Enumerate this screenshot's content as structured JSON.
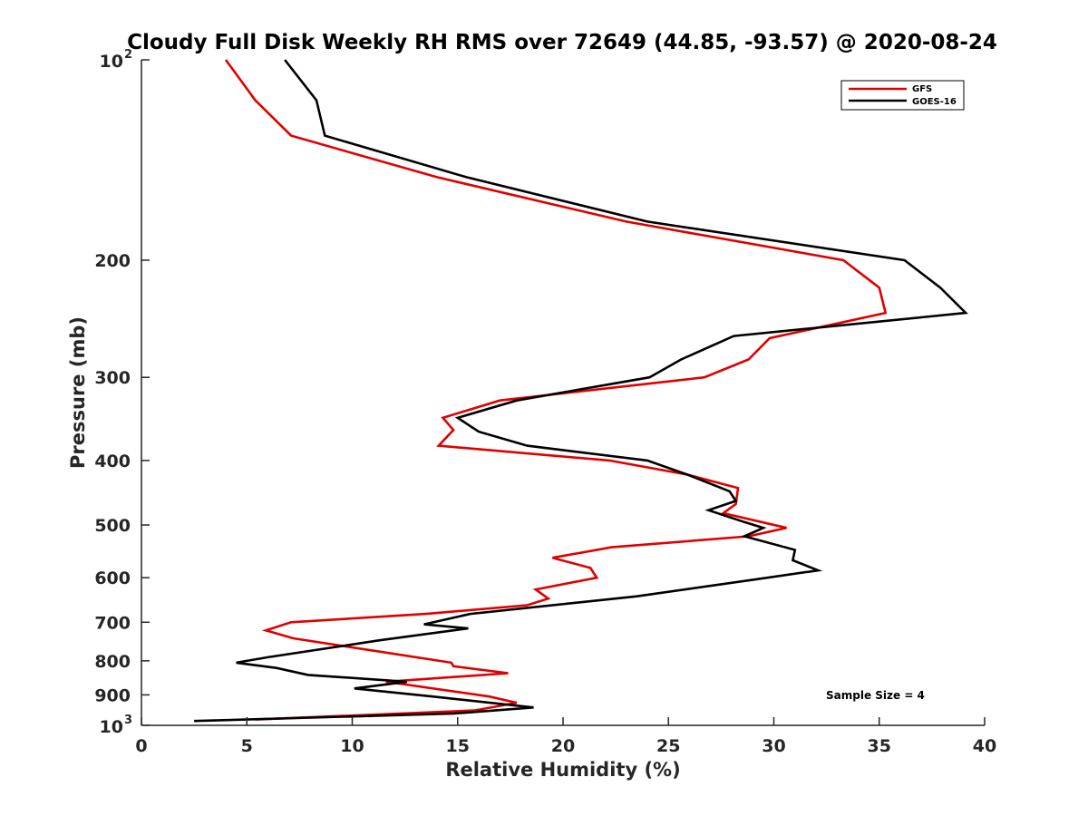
{
  "chart_data": {
    "type": "line",
    "title": "Cloudy Full Disk Weekly RH RMS over 72649 (44.85, -93.57) @ 2020-08-24",
    "xlabel": "Relative Humidity (%)",
    "ylabel": "Pressure (mb)",
    "xlim": [
      0,
      40
    ],
    "ylim": [
      100,
      1000
    ],
    "yscale": "log",
    "y_reversed": true,
    "x_ticks": [
      "0",
      "5",
      "10",
      "15",
      "20",
      "25",
      "30",
      "35",
      "40"
    ],
    "y_ticks": [
      {
        "value": 100,
        "base": "10",
        "exp": "2"
      },
      {
        "value": 200,
        "label": "200"
      },
      {
        "value": 300,
        "label": "300"
      },
      {
        "value": 400,
        "label": "400"
      },
      {
        "value": 500,
        "label": "500"
      },
      {
        "value": 600,
        "label": "600"
      },
      {
        "value": 700,
        "label": "700"
      },
      {
        "value": 800,
        "label": "800"
      },
      {
        "value": 900,
        "label": "900"
      },
      {
        "value": 1000,
        "base": "10",
        "exp": "3"
      }
    ],
    "legend_position": "top-right",
    "annotation": "Sample Size = 4",
    "series": [
      {
        "name": "GFS",
        "color": "#e00000",
        "points": [
          [
            4.0,
            100
          ],
          [
            5.4,
            115
          ],
          [
            7.1,
            130
          ],
          [
            14.0,
            150
          ],
          [
            23.0,
            175
          ],
          [
            33.3,
            200
          ],
          [
            35.0,
            220
          ],
          [
            35.3,
            240
          ],
          [
            29.8,
            262
          ],
          [
            28.8,
            282
          ],
          [
            26.7,
            300
          ],
          [
            17.0,
            325
          ],
          [
            14.3,
            345
          ],
          [
            14.8,
            360
          ],
          [
            14.1,
            380
          ],
          [
            22.2,
            400
          ],
          [
            25.9,
            420
          ],
          [
            28.3,
            440
          ],
          [
            28.2,
            465
          ],
          [
            27.6,
            480
          ],
          [
            30.6,
            505
          ],
          [
            28.8,
            520
          ],
          [
            22.3,
            540
          ],
          [
            19.5,
            560
          ],
          [
            21.3,
            580
          ],
          [
            21.6,
            600
          ],
          [
            18.7,
            625
          ],
          [
            19.3,
            645
          ],
          [
            18.3,
            660
          ],
          [
            13.5,
            680
          ],
          [
            7.1,
            700
          ],
          [
            5.9,
            720
          ],
          [
            7.2,
            740
          ],
          [
            11.3,
            775
          ],
          [
            14.7,
            805
          ],
          [
            14.8,
            815
          ],
          [
            17.4,
            835
          ],
          [
            11.6,
            860
          ],
          [
            16.5,
            905
          ],
          [
            17.8,
            925
          ],
          [
            15.8,
            950
          ],
          [
            5.4,
            980
          ]
        ]
      },
      {
        "name": "GOES-16",
        "color": "#000000",
        "points": [
          [
            6.8,
            100
          ],
          [
            8.3,
            115
          ],
          [
            8.7,
            130
          ],
          [
            15.4,
            150
          ],
          [
            24.0,
            175
          ],
          [
            36.2,
            200
          ],
          [
            37.9,
            220
          ],
          [
            39.1,
            240
          ],
          [
            28.1,
            260
          ],
          [
            25.6,
            282
          ],
          [
            24.1,
            300
          ],
          [
            17.8,
            325
          ],
          [
            15.0,
            345
          ],
          [
            16.0,
            362
          ],
          [
            18.3,
            380
          ],
          [
            24.0,
            400
          ],
          [
            25.9,
            420
          ],
          [
            27.9,
            445
          ],
          [
            28.2,
            460
          ],
          [
            26.9,
            475
          ],
          [
            28.6,
            495
          ],
          [
            29.5,
            505
          ],
          [
            28.6,
            520
          ],
          [
            31.0,
            545
          ],
          [
            30.9,
            565
          ],
          [
            32.1,
            585
          ],
          [
            28.9,
            605
          ],
          [
            23.5,
            640
          ],
          [
            15.6,
            680
          ],
          [
            13.4,
            705
          ],
          [
            15.5,
            715
          ],
          [
            11.3,
            745
          ],
          [
            6.0,
            790
          ],
          [
            4.5,
            805
          ],
          [
            6.4,
            820
          ],
          [
            7.9,
            840
          ],
          [
            12.6,
            860
          ],
          [
            10.1,
            880
          ],
          [
            13.8,
            905
          ],
          [
            18.6,
            940
          ],
          [
            14.8,
            960
          ],
          [
            2.5,
            985
          ]
        ]
      }
    ]
  }
}
